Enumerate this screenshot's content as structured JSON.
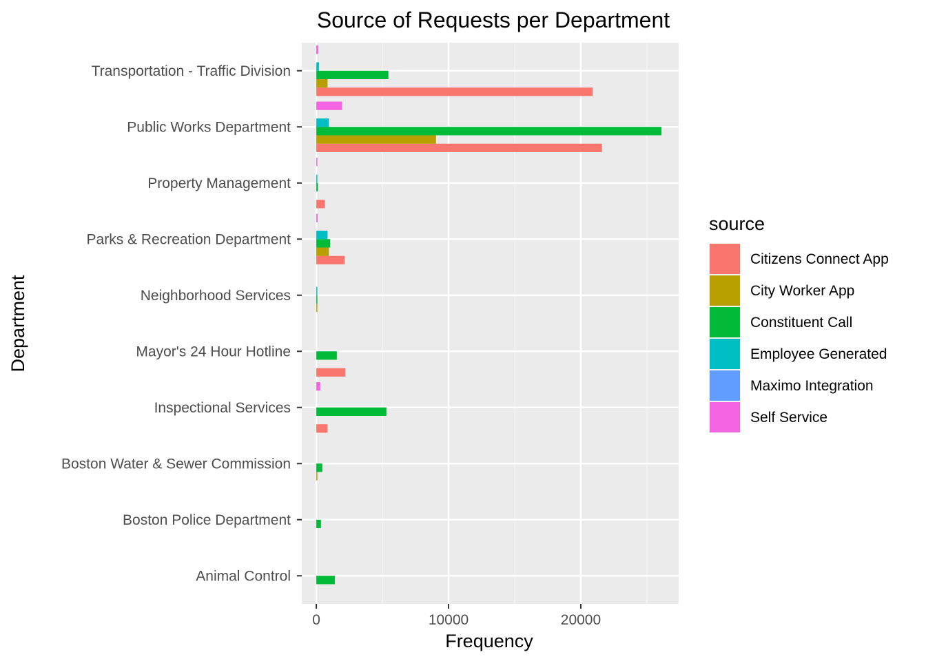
{
  "chart_data": {
    "type": "bar",
    "orientation": "horizontal",
    "title": "Source of Requests per Department",
    "xlabel": "Frequency",
    "ylabel": "Department",
    "xlim": [
      -1100,
      27400
    ],
    "xticks": [
      0,
      10000,
      20000
    ],
    "xtick_labels": [
      "0",
      "10000",
      "20000"
    ],
    "grid": true,
    "legend_position": "right",
    "legend_title": "source",
    "categories": [
      "Transportation - Traffic Division",
      "Public Works Department",
      "Property Management",
      "Parks & Recreation Department",
      "Neighborhood Services",
      "Mayor's 24 Hour Hotline",
      "Inspectional Services",
      "Boston Water & Sewer Commission",
      "Boston Police Department",
      "Animal Control"
    ],
    "series": [
      {
        "name": "Citizens Connect App",
        "color": "#F8766D",
        "values": [
          20900,
          21600,
          650,
          2150,
          0,
          2200,
          850,
          0,
          0,
          0
        ]
      },
      {
        "name": "City Worker App",
        "color": "#B79F00",
        "values": [
          850,
          9050,
          0,
          950,
          30,
          0,
          0,
          80,
          0,
          0
        ]
      },
      {
        "name": "Constituent Call",
        "color": "#00BA38",
        "values": [
          5450,
          26100,
          120,
          1050,
          30,
          1550,
          5300,
          450,
          350,
          1400
        ]
      },
      {
        "name": "Employee Generated",
        "color": "#00BFC4",
        "values": [
          200,
          950,
          50,
          850,
          20,
          0,
          0,
          0,
          0,
          0
        ]
      },
      {
        "name": "Maximo Integration",
        "color": "#619CFF",
        "values": [
          0,
          0,
          0,
          0,
          0,
          0,
          0,
          0,
          0,
          0
        ]
      },
      {
        "name": "Self Service",
        "color": "#F564E3",
        "values": [
          150,
          1950,
          30,
          100,
          0,
          0,
          300,
          0,
          0,
          0
        ]
      }
    ]
  }
}
